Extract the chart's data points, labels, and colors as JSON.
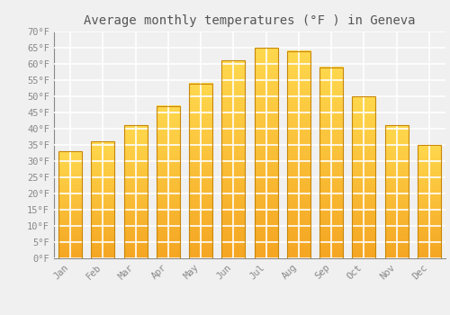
{
  "title": "Average monthly temperatures (°F ) in Geneva",
  "months": [
    "Jan",
    "Feb",
    "Mar",
    "Apr",
    "May",
    "Jun",
    "Jul",
    "Aug",
    "Sep",
    "Oct",
    "Nov",
    "Dec"
  ],
  "values": [
    33,
    36,
    41,
    47,
    54,
    61,
    65,
    64,
    59,
    50,
    41,
    35
  ],
  "bar_color_bottom": "#F5A623",
  "bar_color_top": "#FFD84D",
  "bar_edge_color": "#C8870A",
  "ylim": [
    0,
    70
  ],
  "yticks": [
    0,
    5,
    10,
    15,
    20,
    25,
    30,
    35,
    40,
    45,
    50,
    55,
    60,
    65,
    70
  ],
  "ytick_labels": [
    "0°F",
    "5°F",
    "10°F",
    "15°F",
    "20°F",
    "25°F",
    "30°F",
    "35°F",
    "40°F",
    "45°F",
    "50°F",
    "55°F",
    "60°F",
    "65°F",
    "70°F"
  ],
  "background_color": "#f0f0f0",
  "grid_color": "#ffffff",
  "title_fontsize": 10,
  "tick_fontsize": 7.5,
  "font_family": "monospace",
  "tick_color": "#888888",
  "bar_width": 0.72
}
